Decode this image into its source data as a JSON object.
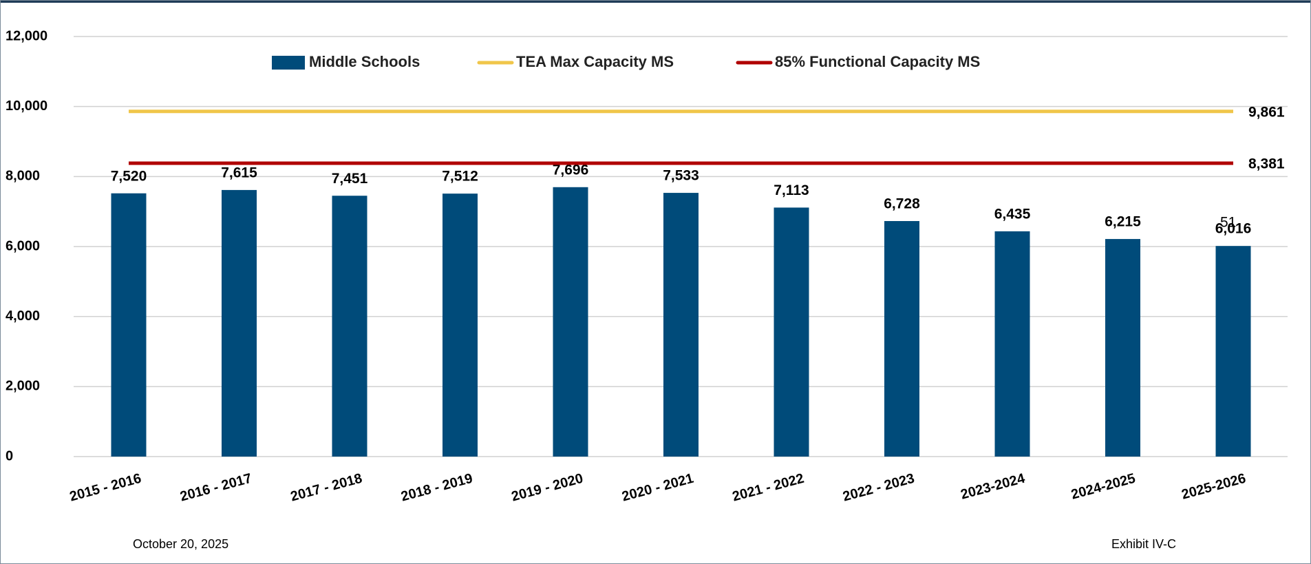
{
  "chart_data": {
    "type": "bar",
    "categories": [
      "2015 - 2016",
      "2016 - 2017",
      "2017 - 2018",
      "2018 - 2019",
      "2019 - 2020",
      "2020 - 2021",
      "2021 - 2022",
      "2022 - 2023",
      "2023-2024",
      "2024-2025",
      "2025-2026"
    ],
    "series": [
      {
        "name": "Middle Schools",
        "type": "bar",
        "color": "#004b7a",
        "values": [
          7520,
          7615,
          7451,
          7512,
          7696,
          7533,
          7113,
          6728,
          6435,
          6215,
          6016
        ],
        "value_labels": [
          "7,520",
          "7,615",
          "7,451",
          "7,512",
          "7,696",
          "7,533",
          "7,113",
          "6,728",
          "6,435",
          "6,215",
          "6,016"
        ]
      },
      {
        "name": "TEA Max Capacity MS",
        "type": "line",
        "color": "#f0c64a",
        "values": [
          9861,
          9861,
          9861,
          9861,
          9861,
          9861,
          9861,
          9861,
          9861,
          9861,
          9861
        ],
        "value_labels": [
          null,
          null,
          null,
          null,
          null,
          null,
          null,
          null,
          null,
          null,
          "9,861"
        ]
      },
      {
        "name": "85% Functional Capacity MS",
        "type": "line",
        "color": "#b00000",
        "values": [
          8381,
          8381,
          8381,
          8381,
          8381,
          8381,
          8381,
          8381,
          8381,
          8381,
          8381
        ],
        "value_labels": [
          null,
          null,
          null,
          null,
          null,
          null,
          null,
          null,
          null,
          null,
          "8,381"
        ]
      }
    ],
    "annotations": [
      "51"
    ],
    "footer_left": "October 20, 2025",
    "footer_right": "Exhibit IV-C",
    "ylim": [
      0,
      12000
    ],
    "yticks": [
      0,
      {
        "value": 2000,
        "label": "2,000"
      },
      {
        "value": 4000,
        "label": "4,000"
      },
      {
        "value": 6000,
        "label": "6,000"
      },
      {
        "value": 8000,
        "label": "8,000"
      },
      {
        "value": 10000,
        "label": "10,000"
      },
      {
        "value": 12000,
        "label": "12,000"
      }
    ],
    "grid": true,
    "legend": "top"
  }
}
